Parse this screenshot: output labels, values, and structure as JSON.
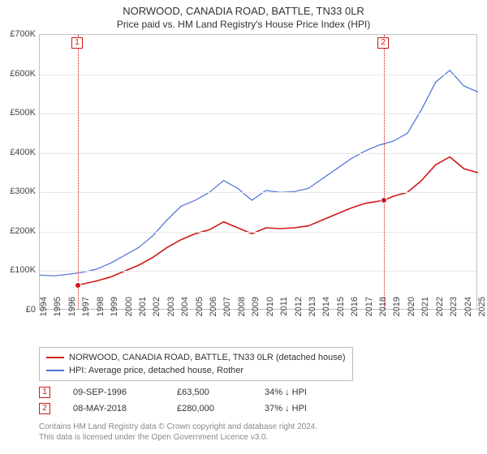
{
  "title": "NORWOOD, CANADIA ROAD, BATTLE, TN33 0LR",
  "subtitle": "Price paid vs. HM Land Registry's House Price Index (HPI)",
  "chart": {
    "type": "line",
    "background_color": "#ffffff",
    "border_color": "#c0c0c0",
    "grid_color": "#e8e8e8",
    "x": {
      "min": 1994,
      "max": 2025,
      "ticks": [
        1994,
        1995,
        1996,
        1997,
        1998,
        1999,
        2000,
        2001,
        2002,
        2003,
        2004,
        2005,
        2006,
        2007,
        2008,
        2009,
        2010,
        2011,
        2012,
        2013,
        2014,
        2015,
        2016,
        2017,
        2018,
        2019,
        2020,
        2021,
        2022,
        2023,
        2024,
        2025
      ]
    },
    "y": {
      "min": 0,
      "max": 700000,
      "ticks": [
        0,
        100000,
        200000,
        300000,
        400000,
        500000,
        600000,
        700000
      ],
      "tick_labels": [
        "£0",
        "£100K",
        "£200K",
        "£300K",
        "£400K",
        "£500K",
        "£600K",
        "£700K"
      ]
    },
    "series": [
      {
        "id": "property",
        "label": "NORWOOD, CANADIA ROAD, BATTLE, TN33 0LR (detached house)",
        "color": "#d01818",
        "line_width": 1.6,
        "data": [
          [
            1996.7,
            63500
          ],
          [
            1997,
            67000
          ],
          [
            1998,
            75000
          ],
          [
            1999,
            85000
          ],
          [
            2000,
            100000
          ],
          [
            2001,
            115000
          ],
          [
            2002,
            135000
          ],
          [
            2003,
            160000
          ],
          [
            2004,
            180000
          ],
          [
            2005,
            195000
          ],
          [
            2006,
            205000
          ],
          [
            2007,
            225000
          ],
          [
            2008,
            210000
          ],
          [
            2009,
            195000
          ],
          [
            2010,
            210000
          ],
          [
            2011,
            208000
          ],
          [
            2012,
            210000
          ],
          [
            2013,
            215000
          ],
          [
            2014,
            230000
          ],
          [
            2015,
            245000
          ],
          [
            2016,
            260000
          ],
          [
            2017,
            272000
          ],
          [
            2018.35,
            280000
          ],
          [
            2019,
            290000
          ],
          [
            2020,
            300000
          ],
          [
            2021,
            330000
          ],
          [
            2022,
            370000
          ],
          [
            2023,
            390000
          ],
          [
            2024,
            360000
          ],
          [
            2025,
            350000
          ]
        ]
      },
      {
        "id": "hpi",
        "label": "HPI: Average price, detached house, Rother",
        "color": "#4a6fd8",
        "line_width": 1.2,
        "data": [
          [
            1994,
            90000
          ],
          [
            1995,
            88000
          ],
          [
            1996,
            92000
          ],
          [
            1997,
            97000
          ],
          [
            1998,
            105000
          ],
          [
            1999,
            120000
          ],
          [
            2000,
            140000
          ],
          [
            2001,
            160000
          ],
          [
            2002,
            190000
          ],
          [
            2003,
            230000
          ],
          [
            2004,
            265000
          ],
          [
            2005,
            280000
          ],
          [
            2006,
            300000
          ],
          [
            2007,
            330000
          ],
          [
            2008,
            310000
          ],
          [
            2009,
            280000
          ],
          [
            2010,
            305000
          ],
          [
            2011,
            300000
          ],
          [
            2012,
            302000
          ],
          [
            2013,
            310000
          ],
          [
            2014,
            335000
          ],
          [
            2015,
            360000
          ],
          [
            2016,
            385000
          ],
          [
            2017,
            405000
          ],
          [
            2018,
            420000
          ],
          [
            2019,
            430000
          ],
          [
            2020,
            450000
          ],
          [
            2021,
            510000
          ],
          [
            2022,
            580000
          ],
          [
            2023,
            610000
          ],
          [
            2024,
            570000
          ],
          [
            2025,
            555000
          ]
        ]
      }
    ],
    "vlines": [
      {
        "id": "1",
        "x": 1996.7,
        "color": "#d01818"
      },
      {
        "id": "2",
        "x": 2018.35,
        "color": "#d01818"
      }
    ],
    "sale_points": [
      {
        "id": "1",
        "x": 1996.7,
        "y": 63500,
        "color": "#d01818"
      },
      {
        "id": "2",
        "x": 2018.35,
        "y": 280000,
        "color": "#d01818"
      }
    ]
  },
  "legend": {
    "items": [
      {
        "color": "#d01818",
        "label": "NORWOOD, CANADIA ROAD, BATTLE, TN33 0LR (detached house)"
      },
      {
        "color": "#4a6fd8",
        "label": "HPI: Average price, detached house, Rother"
      }
    ]
  },
  "points_table": {
    "rows": [
      {
        "marker": "1",
        "marker_color": "#d01818",
        "date": "09-SEP-1996",
        "price": "£63,500",
        "delta": "34% ↓ HPI"
      },
      {
        "marker": "2",
        "marker_color": "#d01818",
        "date": "08-MAY-2018",
        "price": "£280,000",
        "delta": "37% ↓ HPI"
      }
    ]
  },
  "footer": {
    "line1": "Contains HM Land Registry data © Crown copyright and database right 2024.",
    "line2": "This data is licensed under the Open Government Licence v3.0."
  }
}
